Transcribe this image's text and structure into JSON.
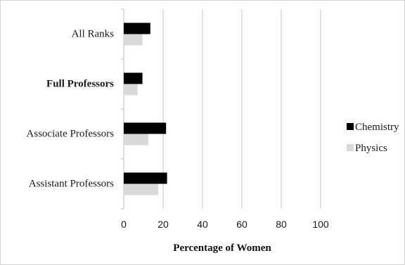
{
  "chart_data": {
    "type": "bar",
    "orientation": "horizontal",
    "categories": [
      "All Ranks",
      "Full Professors",
      "Associate Professors",
      "Assistant Professors"
    ],
    "category_bold": [
      false,
      true,
      false,
      false
    ],
    "series": [
      {
        "name": "Chemistry",
        "values": [
          13.5,
          9.5,
          21.5,
          22
        ],
        "color": "#000000"
      },
      {
        "name": "Physics",
        "values": [
          9.5,
          7,
          12.5,
          17.5
        ],
        "color": "#d9d9d9"
      }
    ],
    "xlabel": "Percentage of Women",
    "ylabel": "",
    "xlim": [
      0,
      100
    ],
    "xticks": [
      "0",
      "20",
      "40",
      "60",
      "80",
      "100"
    ],
    "grid": true,
    "legend_position": "right"
  }
}
